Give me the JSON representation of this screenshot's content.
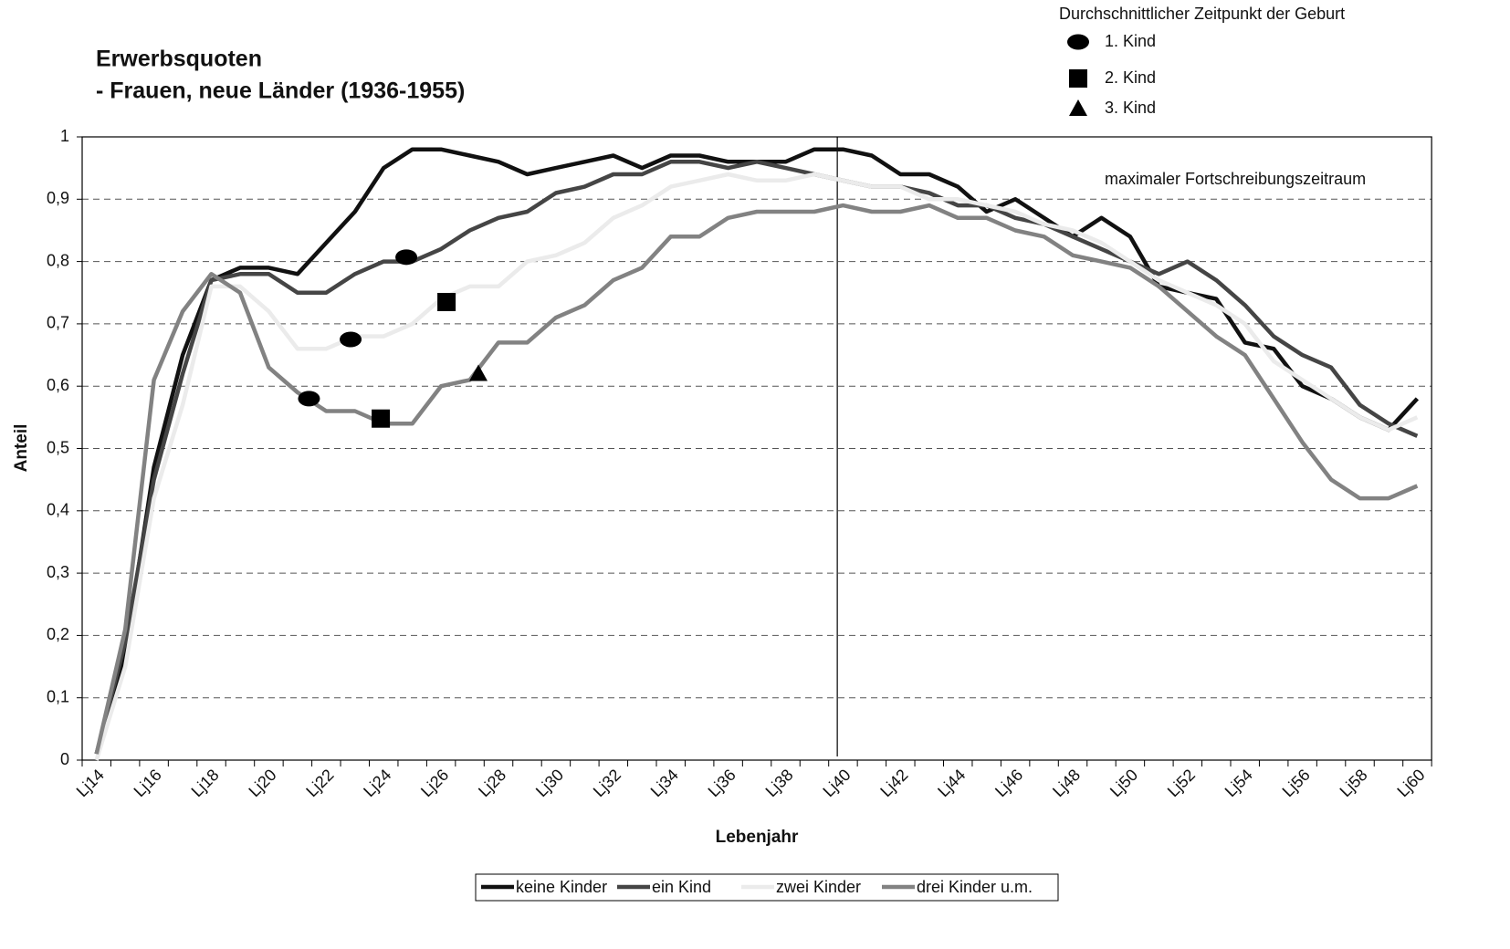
{
  "chart_data": {
    "type": "line",
    "title": "Erwerbsquoten",
    "subtitle": "- Frauen, neue Länder (1936-1955)",
    "x_label": "Lebenjahr",
    "y_label": "Anteil",
    "categories": [
      "Lj14",
      null,
      "Lj16",
      null,
      "Lj18",
      null,
      "Lj20",
      null,
      "Lj22",
      null,
      "Lj24",
      null,
      "Lj26",
      null,
      "Lj28",
      null,
      "Lj30",
      null,
      "Lj32",
      null,
      "Lj34",
      null,
      "Lj36",
      null,
      "Lj38",
      null,
      "Lj40",
      null,
      "Lj42",
      null,
      "Lj44",
      null,
      "Lj46",
      null,
      "Lj48",
      null,
      "Lj50",
      null,
      "Lj52",
      null,
      "Lj54",
      null,
      "Lj56",
      null,
      "Lj58",
      null,
      "Lj60"
    ],
    "series": [
      {
        "name": "keine Kinder",
        "color": "#111111",
        "values": [
          0.01,
          0.17,
          0.47,
          0.65,
          0.77,
          0.79,
          0.79,
          0.78,
          0.83,
          0.88,
          0.95,
          0.98,
          0.98,
          0.97,
          0.96,
          0.94,
          0.95,
          0.96,
          0.97,
          0.95,
          0.97,
          0.97,
          0.96,
          0.96,
          0.96,
          0.98,
          0.98,
          0.97,
          0.94,
          0.94,
          0.92,
          0.88,
          0.9,
          0.87,
          0.84,
          0.87,
          0.84,
          0.76,
          0.75,
          0.74,
          0.67,
          0.66,
          0.6,
          0.58,
          0.55,
          0.53,
          0.58
        ]
      },
      {
        "name": "ein Kind",
        "color": "#454545",
        "values": [
          0.01,
          0.19,
          0.45,
          0.62,
          0.77,
          0.78,
          0.78,
          0.75,
          0.75,
          0.78,
          0.8,
          0.8,
          0.82,
          0.85,
          0.87,
          0.88,
          0.91,
          0.92,
          0.94,
          0.94,
          0.96,
          0.96,
          0.95,
          0.96,
          0.95,
          0.94,
          0.93,
          0.92,
          0.92,
          0.91,
          0.89,
          0.89,
          0.87,
          0.86,
          0.84,
          0.82,
          0.8,
          0.78,
          0.8,
          0.77,
          0.73,
          0.68,
          0.65,
          0.63,
          0.57,
          0.54,
          0.52
        ]
      },
      {
        "name": "zwei Kinder",
        "color": "#ebebeb",
        "values": [
          0,
          0.15,
          0.42,
          0.57,
          0.76,
          0.76,
          0.72,
          0.66,
          0.66,
          0.68,
          0.68,
          0.7,
          0.74,
          0.76,
          0.76,
          0.8,
          0.81,
          0.83,
          0.87,
          0.89,
          0.92,
          0.93,
          0.94,
          0.93,
          0.93,
          0.94,
          0.93,
          0.92,
          0.92,
          0.9,
          0.9,
          0.89,
          0.88,
          0.86,
          0.85,
          0.83,
          0.8,
          0.77,
          0.75,
          0.73,
          0.7,
          0.64,
          0.61,
          0.58,
          0.55,
          0.53,
          0.55
        ]
      },
      {
        "name": "drei Kinder u.m.",
        "color": "#828282",
        "values": [
          0.01,
          0.21,
          0.61,
          0.72,
          0.78,
          0.75,
          0.63,
          0.59,
          0.56,
          0.56,
          0.54,
          0.54,
          0.6,
          0.61,
          0.67,
          0.67,
          0.71,
          0.73,
          0.77,
          0.79,
          0.84,
          0.84,
          0.87,
          0.88,
          0.88,
          0.88,
          0.89,
          0.88,
          0.88,
          0.89,
          0.87,
          0.87,
          0.85,
          0.84,
          0.81,
          0.8,
          0.79,
          0.76,
          0.72,
          0.68,
          0.65,
          0.58,
          0.51,
          0.45,
          0.42,
          0.42,
          0.44
        ]
      }
    ],
    "ylim": [
      0,
      1
    ],
    "yticks": [
      0,
      {
        "value": 0.1,
        "label": "0,1"
      },
      {
        "value": 0.2,
        "label": "0,2"
      },
      {
        "value": 0.3,
        "label": "0,3"
      },
      {
        "value": 0.4,
        "label": "0,4"
      },
      {
        "value": 0.5,
        "label": "0,5"
      },
      {
        "value": 0.6,
        "label": "0,6"
      },
      {
        "value": 0.7,
        "label": "0,7"
      },
      {
        "value": 0.8,
        "label": "0,8"
      },
      {
        "value": 0.9,
        "label": "0,9"
      },
      1
    ],
    "grid": true,
    "vline": {
      "x": 39.8,
      "label": "maximaler Fortschreibungszeitraum"
    },
    "birth_legend": {
      "title": "Durchschnittlicher Zeitpunkt der Geburt",
      "items": [
        {
          "label": "1. Kind",
          "shape": "ellipse"
        },
        {
          "label": "2. Kind",
          "shape": "square"
        },
        {
          "label": "3. Kind",
          "shape": "triangle"
        }
      ]
    },
    "birth_markers": [
      {
        "shape": "ellipse",
        "x": 24.79,
        "y": 0.807
      },
      {
        "shape": "square",
        "x": 26.19,
        "y": 0.735
      },
      {
        "shape": "ellipse",
        "x": 22.85,
        "y": 0.675
      },
      {
        "shape": "square",
        "x": 23.9,
        "y": 0.548
      },
      {
        "shape": "ellipse",
        "x": 21.4,
        "y": 0.58
      },
      {
        "shape": "triangle",
        "x": 27.3,
        "y": 0.62
      }
    ]
  }
}
